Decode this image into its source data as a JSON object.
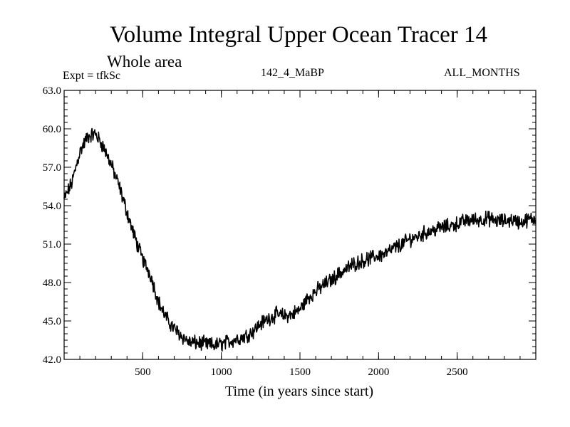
{
  "chart_data": {
    "type": "line",
    "title": "Volume Integral Upper Ocean Tracer 14",
    "subtitle": "Whole area",
    "experiment": "Expt = tfkSc",
    "run_label": "142_4_MaBP",
    "months_label": "ALL_MONTHS",
    "xlabel": "Time (in years since start)",
    "ylabel": "",
    "xlim": [
      0,
      3000
    ],
    "ylim": [
      42.0,
      63.0
    ],
    "xticks": [
      500,
      1000,
      1500,
      2000,
      2500
    ],
    "xtick_labels": [
      "500",
      "1000",
      "1500",
      "2000",
      "2500"
    ],
    "yticks": [
      42.0,
      45.0,
      48.0,
      51.0,
      54.0,
      57.0,
      60.0,
      63.0
    ],
    "ytick_labels": [
      "42.0",
      "45.0",
      "48.0",
      "51.0",
      "54.0",
      "57.0",
      "60.0",
      "63.0"
    ],
    "series": [
      {
        "name": "Volume integral",
        "x": [
          0,
          50,
          100,
          150,
          200,
          250,
          300,
          350,
          400,
          450,
          500,
          550,
          600,
          650,
          700,
          750,
          800,
          850,
          900,
          950,
          1000,
          1050,
          1100,
          1150,
          1200,
          1250,
          1300,
          1350,
          1400,
          1450,
          1500,
          1550,
          1600,
          1650,
          1700,
          1750,
          1800,
          1850,
          1900,
          1950,
          2000,
          2050,
          2100,
          2150,
          2200,
          2250,
          2300,
          2350,
          2400,
          2450,
          2500,
          2550,
          2600,
          2650,
          2700,
          2750,
          2800,
          2850,
          2900,
          2950,
          3000
        ],
        "values": [
          54.5,
          55.8,
          58.2,
          59.4,
          59.6,
          58.6,
          57.2,
          55.5,
          53.5,
          51.5,
          49.8,
          48.6,
          46.5,
          45.2,
          44.4,
          43.8,
          43.3,
          43.3,
          43.2,
          43.1,
          43.2,
          43.4,
          43.6,
          43.8,
          44.2,
          44.8,
          45.2,
          45.5,
          45.4,
          45.5,
          45.9,
          46.8,
          47.3,
          47.8,
          48.2,
          48.7,
          49.1,
          49.5,
          49.7,
          49.9,
          50.1,
          50.3,
          50.7,
          51.0,
          51.4,
          51.6,
          51.9,
          52.1,
          52.3,
          52.4,
          52.6,
          52.8,
          52.9,
          52.9,
          53.0,
          52.8,
          52.8,
          52.9,
          52.7,
          52.9,
          53.0
        ]
      }
    ]
  }
}
